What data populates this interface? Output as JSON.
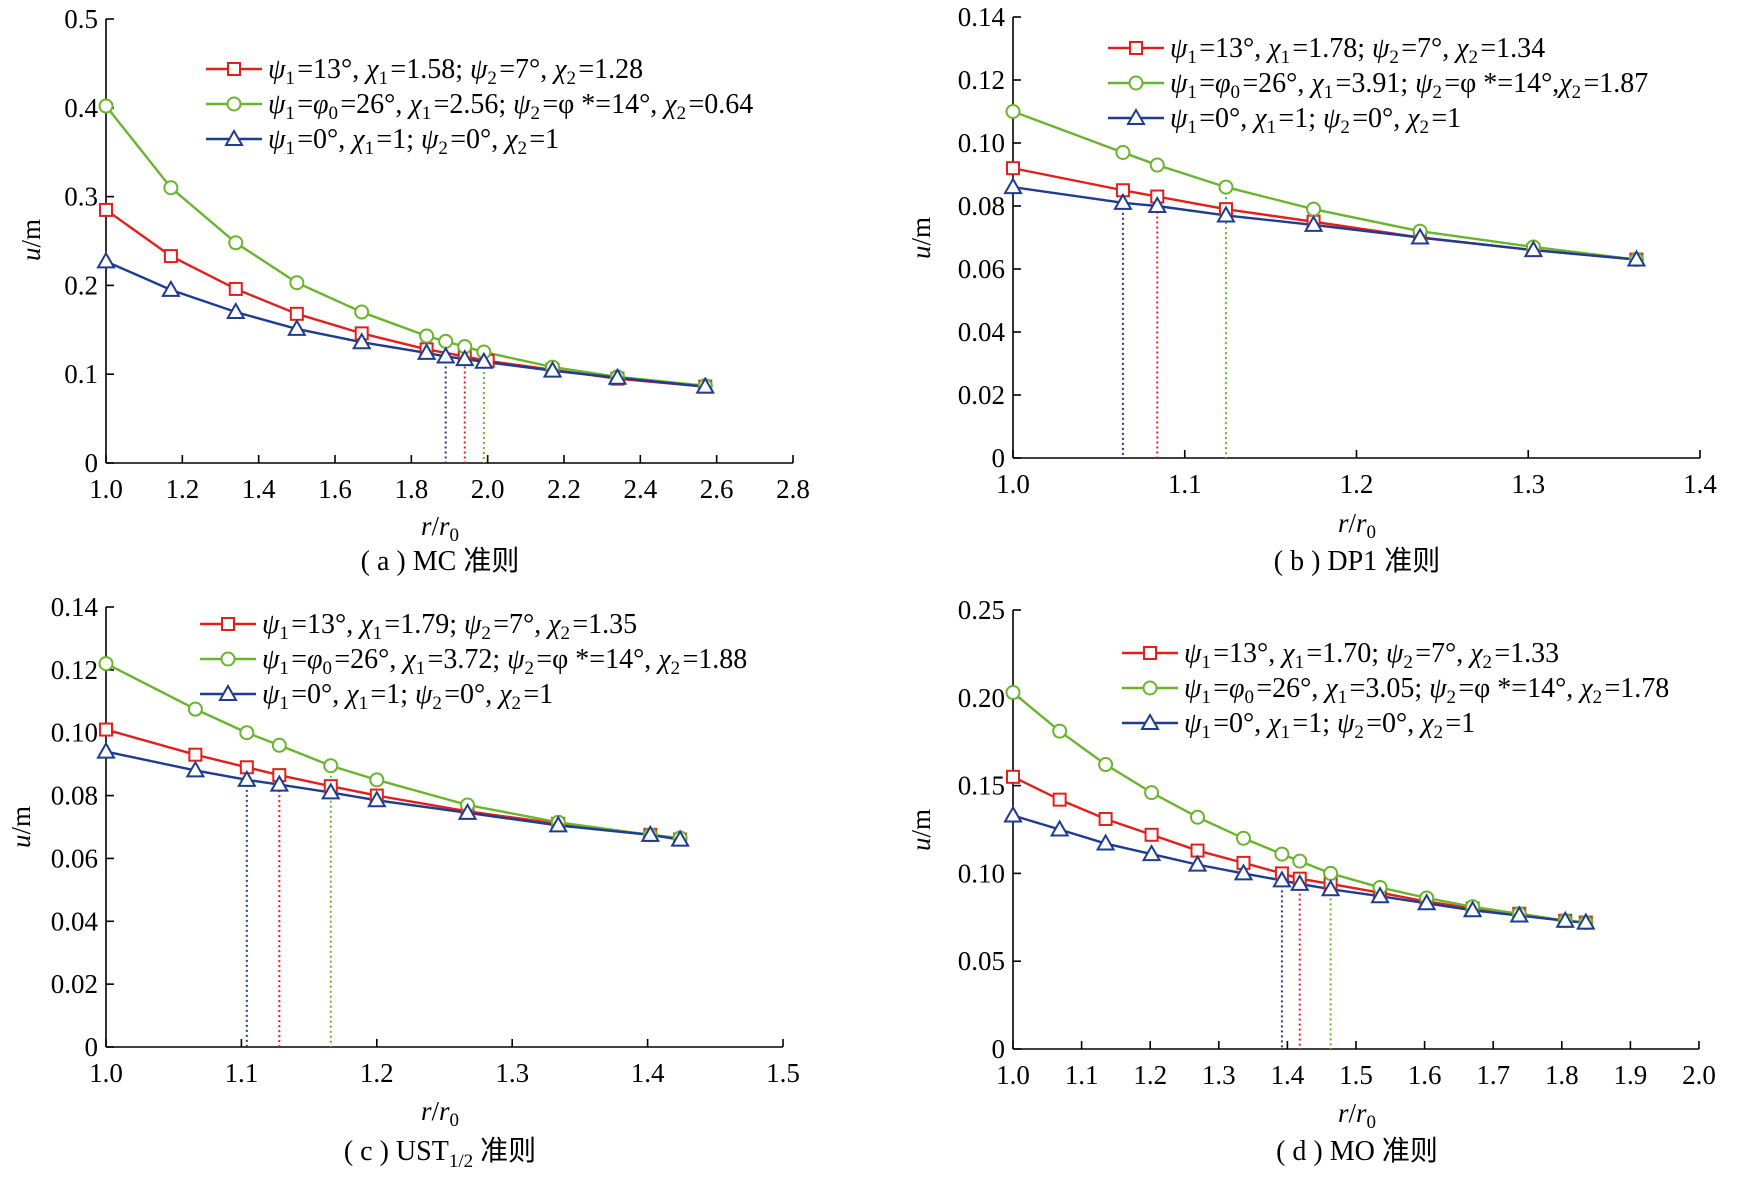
{
  "chart_data": [
    {
      "type": "line",
      "caption": "( a ) MC 准则",
      "xlabel": "r/r0",
      "ylabel": "u/m",
      "xlim": [
        1.0,
        2.8
      ],
      "ylim": [
        0,
        0.5
      ],
      "xticks": [
        1.0,
        1.2,
        1.4,
        1.6,
        1.8,
        2.0,
        2.2,
        2.4,
        2.6,
        2.8
      ],
      "xtick_labels": [
        "1.0",
        "1.2",
        "1.4",
        "1.6",
        "1.8",
        "2.0",
        "2.2",
        "2.4",
        "2.6",
        "2.8"
      ],
      "yticks": [
        0,
        0.1,
        0.2,
        0.3,
        0.4,
        0.5
      ],
      "ytick_labels": [
        "0",
        "0.1",
        "0.2",
        "0.3",
        "0.4",
        "0.5"
      ],
      "legend_position": "top-right",
      "series": [
        {
          "name": "ψ1=13°, χ1=1.58; ψ2=7°, χ2=1.28",
          "color": "#e0201c",
          "marker": "square",
          "x": [
            1.0,
            1.17,
            1.34,
            1.5,
            1.67,
            1.84,
            1.94,
            2.0,
            2.17,
            2.34,
            2.57
          ],
          "y": [
            0.285,
            0.233,
            0.196,
            0.168,
            0.146,
            0.128,
            0.12,
            0.115,
            0.105,
            0.095,
            0.086
          ],
          "boundary_x": 1.94
        },
        {
          "name": "ψ1=φ0=26°, χ1=2.56; ψ2=φ *=14°, χ2=0.64",
          "color": "#6ab42d",
          "marker": "circle",
          "x": [
            1.0,
            1.17,
            1.34,
            1.5,
            1.67,
            1.84,
            1.89,
            1.94,
            1.99,
            2.17,
            2.34,
            2.57
          ],
          "y": [
            0.402,
            0.31,
            0.248,
            0.203,
            0.17,
            0.143,
            0.137,
            0.131,
            0.125,
            0.108,
            0.097,
            0.087
          ],
          "boundary_x": 1.99
        },
        {
          "name": "ψ1=0°, χ1=1; ψ2=0°, χ2=1",
          "color": "#1f3c8f",
          "marker": "triangle",
          "x": [
            1.0,
            1.17,
            1.34,
            1.5,
            1.67,
            1.84,
            1.89,
            1.94,
            1.99,
            2.17,
            2.34,
            2.57
          ],
          "y": [
            0.227,
            0.195,
            0.17,
            0.151,
            0.136,
            0.124,
            0.12,
            0.117,
            0.114,
            0.104,
            0.096,
            0.086
          ],
          "boundary_x": 1.89
        }
      ]
    },
    {
      "type": "line",
      "caption": "( b ) DP1 准则",
      "xlabel": "r/r0",
      "ylabel": "u/m",
      "xlim": [
        1.0,
        1.4
      ],
      "ylim": [
        0,
        0.14
      ],
      "xticks": [
        1.0,
        1.1,
        1.2,
        1.3,
        1.4
      ],
      "xtick_labels": [
        "1.0",
        "1.1",
        "1.2",
        "1.3",
        "1.4"
      ],
      "yticks": [
        0,
        0.02,
        0.04,
        0.06,
        0.08,
        0.1,
        0.12,
        0.14
      ],
      "ytick_labels": [
        "0",
        "0.02",
        "0.04",
        "0.06",
        "0.08",
        "0.10",
        "0.12",
        "0.14"
      ],
      "legend_position": "top-right",
      "series": [
        {
          "name": "ψ1=13°, χ1=1.78; ψ2=7°, χ2=1.34",
          "color": "#e0201c",
          "marker": "square",
          "x": [
            1.0,
            1.064,
            1.084,
            1.124,
            1.175,
            1.237,
            1.303,
            1.363
          ],
          "y": [
            0.092,
            0.085,
            0.083,
            0.079,
            0.075,
            0.07,
            0.066,
            0.063
          ],
          "boundary_x": 1.084
        },
        {
          "name": "ψ1=φ0=26°, χ1=3.91; ψ2=φ *=14°,χ2=1.87",
          "color": "#6ab42d",
          "marker": "circle",
          "x": [
            1.0,
            1.064,
            1.084,
            1.124,
            1.175,
            1.237,
            1.303,
            1.363
          ],
          "y": [
            0.11,
            0.097,
            0.093,
            0.086,
            0.079,
            0.072,
            0.067,
            0.063
          ],
          "boundary_x": 1.124
        },
        {
          "name": "ψ1=0°, χ1=1; ψ2=0°, χ2=1",
          "color": "#1f3c8f",
          "marker": "triangle",
          "x": [
            1.0,
            1.064,
            1.084,
            1.124,
            1.175,
            1.237,
            1.303,
            1.363
          ],
          "y": [
            0.086,
            0.081,
            0.08,
            0.077,
            0.074,
            0.07,
            0.066,
            0.063
          ],
          "boundary_x": 1.064
        }
      ]
    },
    {
      "type": "line",
      "caption": "( c ) UST",
      "caption_sub": "1/2",
      "caption_tail": " 准则",
      "xlabel": "r/r0",
      "ylabel": "u/m",
      "xlim": [
        1.0,
        1.5
      ],
      "ylim": [
        0,
        0.14
      ],
      "xticks": [
        1.0,
        1.1,
        1.2,
        1.3,
        1.4,
        1.5
      ],
      "xtick_labels": [
        "1.0",
        "1.1",
        "1.2",
        "1.3",
        "1.4",
        "1.5"
      ],
      "yticks": [
        0,
        0.02,
        0.04,
        0.06,
        0.08,
        0.1,
        0.12,
        0.14
      ],
      "ytick_labels": [
        "0",
        "0.02",
        "0.04",
        "0.06",
        "0.08",
        "0.10",
        "0.12",
        "0.14"
      ],
      "legend_position": "top-right",
      "series": [
        {
          "name": "ψ1=13°, χ1=1.79; ψ2=7°, χ2=1.35",
          "color": "#e0201c",
          "marker": "square",
          "x": [
            1.0,
            1.066,
            1.104,
            1.128,
            1.166,
            1.2,
            1.267,
            1.334,
            1.402,
            1.424
          ],
          "y": [
            0.101,
            0.093,
            0.089,
            0.0865,
            0.083,
            0.08,
            0.075,
            0.071,
            0.0675,
            0.066
          ],
          "boundary_x": 1.128
        },
        {
          "name": "ψ1=φ0=26°, χ1=3.72; ψ2=φ *=14°, χ2=1.88",
          "color": "#6ab42d",
          "marker": "circle",
          "x": [
            1.0,
            1.066,
            1.104,
            1.128,
            1.166,
            1.2,
            1.267,
            1.334,
            1.402,
            1.424
          ],
          "y": [
            0.122,
            0.1075,
            0.1,
            0.096,
            0.0895,
            0.085,
            0.077,
            0.0715,
            0.0675,
            0.0665
          ],
          "boundary_x": 1.166
        },
        {
          "name": "ψ1=0°, χ1=1; ψ2=0°, χ2=1",
          "color": "#1f3c8f",
          "marker": "triangle",
          "x": [
            1.0,
            1.066,
            1.104,
            1.128,
            1.166,
            1.2,
            1.267,
            1.334,
            1.402,
            1.424
          ],
          "y": [
            0.094,
            0.088,
            0.085,
            0.0835,
            0.081,
            0.0785,
            0.0745,
            0.0705,
            0.0675,
            0.066
          ],
          "boundary_x": 1.104
        }
      ]
    },
    {
      "type": "line",
      "caption": "( d ) MO 准则",
      "xlabel": "r/r0",
      "ylabel": "u/m",
      "xlim": [
        1.0,
        2.0
      ],
      "ylim": [
        0,
        0.25
      ],
      "xticks": [
        1.0,
        1.1,
        1.2,
        1.3,
        1.4,
        1.5,
        1.6,
        1.7,
        1.8,
        1.9,
        2.0
      ],
      "xtick_labels": [
        "1.0",
        "1.1",
        "1.2",
        "1.3",
        "1.4",
        "1.5",
        "1.6",
        "1.7",
        "1.8",
        "1.9",
        "2.0"
      ],
      "yticks": [
        0,
        0.05,
        0.1,
        0.15,
        0.2,
        0.25
      ],
      "ytick_labels": [
        "0",
        "0.05",
        "0.10",
        "0.15",
        "0.20",
        "0.25"
      ],
      "legend_position": "top-right",
      "series": [
        {
          "name": "ψ1=13°, χ1=1.70; ψ2=7°, χ2=1.33",
          "color": "#e0201c",
          "marker": "square",
          "x": [
            1.0,
            1.068,
            1.135,
            1.202,
            1.269,
            1.336,
            1.392,
            1.418,
            1.463,
            1.535,
            1.603,
            1.67,
            1.738,
            1.805,
            1.835
          ],
          "y": [
            0.155,
            0.142,
            0.131,
            0.122,
            0.113,
            0.106,
            0.1,
            0.097,
            0.094,
            0.089,
            0.084,
            0.08,
            0.077,
            0.073,
            0.072
          ],
          "boundary_x": 1.418
        },
        {
          "name": "ψ1=φ0=26°, χ1=3.05; ψ2=φ *=14°, χ2=1.78",
          "color": "#6ab42d",
          "marker": "circle",
          "x": [
            1.0,
            1.068,
            1.135,
            1.202,
            1.269,
            1.336,
            1.392,
            1.418,
            1.463,
            1.535,
            1.603,
            1.67,
            1.738,
            1.805,
            1.835
          ],
          "y": [
            0.203,
            0.181,
            0.162,
            0.146,
            0.132,
            0.12,
            0.111,
            0.107,
            0.1,
            0.092,
            0.086,
            0.081,
            0.077,
            0.073,
            0.072
          ],
          "boundary_x": 1.463
        },
        {
          "name": "ψ1=0°, χ1=1; ψ2=0°, χ2=1",
          "color": "#1f3c8f",
          "marker": "triangle",
          "x": [
            1.0,
            1.068,
            1.135,
            1.202,
            1.269,
            1.336,
            1.392,
            1.418,
            1.463,
            1.535,
            1.603,
            1.67,
            1.738,
            1.805,
            1.835
          ],
          "y": [
            0.133,
            0.125,
            0.117,
            0.111,
            0.105,
            0.1,
            0.096,
            0.094,
            0.091,
            0.087,
            0.083,
            0.079,
            0.076,
            0.073,
            0.072
          ],
          "boundary_x": 1.392
        }
      ]
    }
  ]
}
